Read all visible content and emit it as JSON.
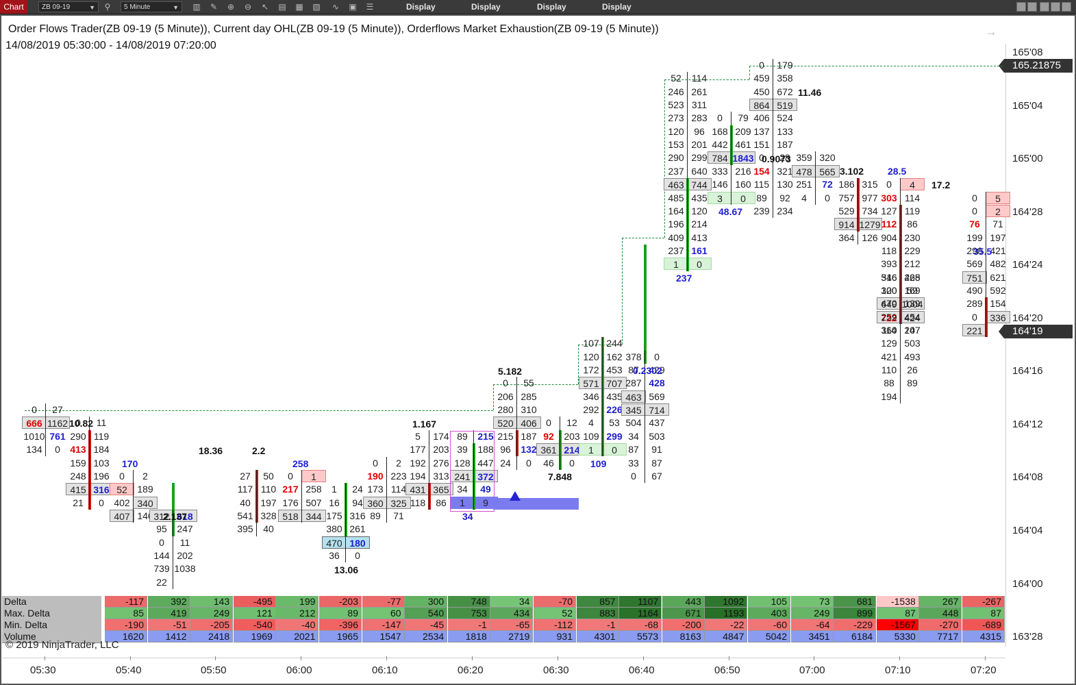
{
  "toolbar": {
    "tab_label": "Chart",
    "instrument": "ZB 09-19",
    "interval": "5 Minute",
    "display_buttons": [
      "Display",
      "Display",
      "Display",
      "Display"
    ],
    "icons": [
      "search-icon",
      "bar-chart-icon",
      "pencil-icon",
      "zoom-in-icon",
      "zoom-out-icon",
      "pointer-icon",
      "template-icon",
      "properties-icon",
      "strategy-icon",
      "draw-icon",
      "data-box-icon",
      "list-icon"
    ]
  },
  "chart": {
    "title": "Order Flows Trader(ZB 09-19 (5 Minute)), Current day OHL(ZB 09-19 (5 Minute)),  Orderflows Market Exhaustion(ZB 09-19 (5 Minute))",
    "date_range": "14/08/2019 05:30:00 - 14/08/2019 07:20:00",
    "price_labels": [
      "165'08",
      "165'04",
      "165'00",
      "164'28",
      "164'24",
      "164'20",
      "164'16",
      "164'12",
      "164'08",
      "164'04",
      "164'00",
      "163'28"
    ],
    "price_tags": [
      {
        "value": "165.21875",
        "color": "#333333"
      },
      {
        "value": "164'19",
        "color": "#333333"
      }
    ],
    "time_labels": [
      "05:30",
      "05:40",
      "05:50",
      "06:00",
      "06:10",
      "06:20",
      "06:30",
      "06:40",
      "06:50",
      "07:00",
      "07:10",
      "07:20"
    ],
    "copyright": "© 2019 NinjaTrader, LLC",
    "labels": [
      "10.82",
      "2.137",
      "18.36",
      "2.2",
      "170",
      "258",
      "13.06",
      "1.167",
      "34",
      "5.182",
      "7.848",
      "109",
      "0.2302",
      "237",
      "48.67",
      "0.9073",
      "11.46",
      "3.102",
      "28.5",
      "17.2",
      "35.5"
    ],
    "colors": {
      "buy": "#1e1ed0",
      "sell": "#e00000",
      "up_bar": "#1aa01a",
      "down_bar": "#c81414",
      "ohl_line": "#1a8a3a"
    }
  },
  "footprint": {
    "c0": [
      "0",
      "27",
      "666",
      "1162",
      "1010",
      "761",
      "134",
      "0"
    ],
    "c1": [
      "0",
      "11",
      "290",
      "119",
      "413",
      "184",
      "159",
      "103",
      "248",
      "196",
      "415",
      "316",
      "21",
      "0"
    ],
    "c2": [
      "0",
      "2",
      "52",
      "189",
      "402",
      "340",
      "407",
      "146"
    ],
    "c3": [
      "312",
      "618",
      "95",
      "247",
      "0",
      "11",
      "144",
      "202",
      "739",
      "1038",
      "22"
    ],
    "c4": [
      "27",
      "50",
      "117",
      "110",
      "40",
      "197",
      "541",
      "328",
      "395",
      "40"
    ],
    "c5": [
      "0",
      "1",
      "217",
      "258",
      "176",
      "507",
      "518",
      "344"
    ],
    "c6": [
      "1",
      "24",
      "16",
      "94",
      "175",
      "316",
      "380",
      "261",
      "470",
      "180",
      "36",
      "0"
    ],
    "c7": [
      "0",
      "2",
      "190",
      "223",
      "173",
      "114",
      "360",
      "325",
      "89",
      "71"
    ],
    "c8": [
      "5",
      "174",
      "177",
      "203",
      "192",
      "276",
      "194",
      "313",
      "431",
      "365",
      "118",
      "86"
    ],
    "c9": [
      "89",
      "215",
      "39",
      "188",
      "128",
      "447",
      "241",
      "372",
      "34",
      "49",
      "1",
      "9"
    ],
    "c10": [
      "0",
      "55",
      "206",
      "285",
      "280",
      "310",
      "520",
      "406",
      "215",
      "187",
      "96",
      "132",
      "24",
      "0"
    ],
    "c11": [
      "0",
      "12",
      "92",
      "203",
      "361",
      "214",
      "46",
      "0"
    ],
    "c12": [
      "107",
      "244",
      "120",
      "162",
      "172",
      "453",
      "571",
      "707",
      "346",
      "435",
      "292",
      "226",
      "4",
      "53",
      "109",
      "299",
      "1",
      "0"
    ],
    "c13": [
      "378",
      "0",
      "87",
      "429",
      "287",
      "428",
      "463",
      "569",
      "345",
      "714",
      "504",
      "437",
      "34",
      "503",
      "87",
      "91",
      "33",
      "87",
      "0",
      "67"
    ],
    "c14": [
      "52",
      "114",
      "246",
      "261",
      "523",
      "311",
      "273",
      "283",
      "120",
      "96",
      "153",
      "201",
      "290",
      "299",
      "237",
      "640",
      "463",
      "744",
      "485",
      "435",
      "164",
      "120",
      "196",
      "214",
      "409",
      "413",
      "237",
      "161",
      "1",
      "0"
    ],
    "c15": [
      "0",
      "79",
      "168",
      "209",
      "442",
      "461",
      "784",
      "1843",
      "333",
      "216",
      "146",
      "160",
      "3",
      "0"
    ],
    "c16": [
      "0",
      "179",
      "459",
      "358",
      "450",
      "672",
      "864",
      "519",
      "406",
      "524",
      "137",
      "133",
      "151",
      "187",
      "0",
      "28",
      "154",
      "321",
      "115",
      "130",
      "89",
      "92",
      "239",
      "234"
    ],
    "c17": [
      "359",
      "320",
      "478",
      "565",
      "251",
      "72",
      "4",
      "0"
    ],
    "c18": [
      "186",
      "315",
      "757",
      "977",
      "529",
      "734",
      "914",
      "1279",
      "364",
      "126"
    ],
    "c19": [
      "0",
      "4",
      "303",
      "114",
      "127",
      "119",
      "112",
      "86",
      "904",
      "230",
      "118",
      "229",
      "393",
      "212",
      "316",
      "265",
      "300",
      "59",
      "649",
      "1004",
      "722",
      "424",
      "360",
      "207"
    ],
    "c20": [
      "546",
      "428",
      "120",
      "169",
      "470",
      "139",
      "259",
      "454",
      "114",
      "147",
      "129",
      "503",
      "421",
      "493",
      "110",
      "26",
      "88",
      "89",
      "194"
    ],
    "c21": [
      "0",
      "5",
      "0",
      "2",
      "76",
      "71",
      "199",
      "197",
      "290",
      "421",
      "569",
      "482",
      "751",
      "621",
      "490",
      "592",
      "289",
      "154",
      "0",
      "336",
      "221"
    ]
  },
  "panel": {
    "headers": [
      "Delta",
      "Max. Delta",
      "Min. Delta",
      "Volume"
    ],
    "delta": [
      "-117",
      "392",
      "143",
      "-495",
      "199",
      "-203",
      "-77",
      "300",
      "748",
      "34",
      "-70",
      "857",
      "1107",
      "443",
      "1092",
      "105",
      "73",
      "681",
      "-1538",
      "267",
      "-267"
    ],
    "max_delta": [
      "85",
      "419",
      "249",
      "121",
      "212",
      "89",
      "60",
      "540",
      "753",
      "434",
      "52",
      "883",
      "1164",
      "671",
      "1193",
      "403",
      "249",
      "899",
      "87",
      "448",
      "87"
    ],
    "min_delta": [
      "-190",
      "-51",
      "-205",
      "-540",
      "-40",
      "-396",
      "-147",
      "-45",
      "-1",
      "-65",
      "-112",
      "-1",
      "-68",
      "-200",
      "-22",
      "-60",
      "-64",
      "-229",
      "-1567",
      "-270",
      "-689"
    ],
    "volume": [
      "1620",
      "1412",
      "2418",
      "1969",
      "2021",
      "1965",
      "1547",
      "2534",
      "1818",
      "2719",
      "931",
      "4301",
      "5573",
      "8163",
      "4847",
      "5042",
      "3451",
      "6184",
      "5330",
      "7717",
      "4315"
    ]
  }
}
